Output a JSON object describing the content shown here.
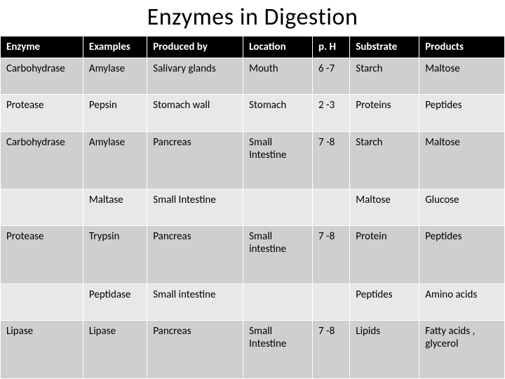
{
  "title": "Enzymes in Digestion",
  "table": {
    "type": "table",
    "header_bg": "#000000",
    "header_fg": "#ffffff",
    "row_bg_a": "#cfcfcf",
    "row_bg_b": "#e8e8e8",
    "border_color": "#ffffff",
    "title_fontsize": 34,
    "cell_fontsize": 15,
    "columns": [
      {
        "key": "enzyme",
        "label": "Enzyme",
        "width_pct": 15.5
      },
      {
        "key": "examples",
        "label": "Examples",
        "width_pct": 12
      },
      {
        "key": "produced",
        "label": "Produced by",
        "width_pct": 18
      },
      {
        "key": "location",
        "label": "Location",
        "width_pct": 13
      },
      {
        "key": "ph",
        "label": "p. H",
        "width_pct": 7
      },
      {
        "key": "substrate",
        "label": "Substrate",
        "width_pct": 13
      },
      {
        "key": "products",
        "label": "Products",
        "width_pct": 16
      }
    ],
    "rows": [
      {
        "shade": "a",
        "enzyme": "Carbohydrase",
        "examples": "Amylase",
        "produced": "Salivary glands",
        "location": "Mouth",
        "ph": "6 -7",
        "substrate": "Starch",
        "products": "Maltose"
      },
      {
        "shade": "b",
        "enzyme": "Protease",
        "examples": "Pepsin",
        "produced": "Stomach wall",
        "location": "Stomach",
        "ph": "2 -3",
        "substrate": "Proteins",
        "products": "Peptides"
      },
      {
        "shade": "a",
        "enzyme": "Carbohydrase",
        "examples": "Amylase",
        "produced": "Pancreas",
        "location": "Small Intestine",
        "ph": "7 -8",
        "substrate": "Starch",
        "products": "Maltose"
      },
      {
        "shade": "b",
        "enzyme": "",
        "examples": "Maltase",
        "produced": "Small Intestine",
        "location": "",
        "ph": "",
        "substrate": "Maltose",
        "products": "Glucose"
      },
      {
        "shade": "a",
        "enzyme": "Protease",
        "examples": "Trypsin",
        "produced": "Pancreas",
        "location": "Small intestine",
        "ph": "7 -8",
        "substrate": "Protein",
        "products": "Peptides"
      },
      {
        "shade": "b",
        "enzyme": "",
        "examples": "Peptidase",
        "produced": "Small intestine",
        "location": "",
        "ph": "",
        "substrate": "Peptides",
        "products": "Amino acids"
      },
      {
        "shade": "a",
        "enzyme": "Lipase",
        "examples": "Lipase",
        "produced": "Pancreas",
        "location": "Small Intestine",
        "ph": "7 -8",
        "substrate": "Lipids",
        "products": "Fatty acids , glycerol"
      }
    ]
  }
}
